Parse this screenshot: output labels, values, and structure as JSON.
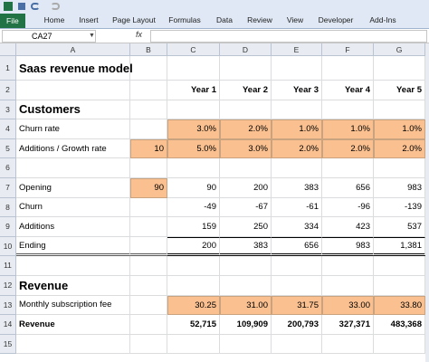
{
  "ribbon": {
    "tabs": [
      "File",
      "Home",
      "Insert",
      "Page Layout",
      "Formulas",
      "Data",
      "Review",
      "View",
      "Developer",
      "Add-Ins"
    ]
  },
  "formula_bar": {
    "name_box": "CA27",
    "fx": "fx"
  },
  "columns": [
    "A",
    "B",
    "C",
    "D",
    "E",
    "F",
    "G"
  ],
  "row_headers": [
    "1",
    "2",
    "3",
    "4",
    "5",
    "6",
    "7",
    "8",
    "9",
    "10",
    "11",
    "12",
    "13",
    "14",
    "15"
  ],
  "rows": [
    [
      "Saas revenue model",
      null,
      null,
      null,
      null,
      null,
      null
    ],
    [
      null,
      null,
      "Year 1",
      "Year 2",
      "Year 3",
      "Year 4",
      "Year 5"
    ],
    [
      "Customers",
      null,
      null,
      null,
      null,
      null,
      null
    ],
    [
      "Churn rate",
      null,
      "3.0%",
      "2.0%",
      "1.0%",
      "1.0%",
      "1.0%"
    ],
    [
      "Additions / Growth rate",
      "10",
      "5.0%",
      "3.0%",
      "2.0%",
      "2.0%",
      "2.0%"
    ],
    [
      null,
      null,
      null,
      null,
      null,
      null,
      null
    ],
    [
      "Opening",
      "90",
      "90",
      "200",
      "383",
      "656",
      "983"
    ],
    [
      "Churn",
      null,
      "-49",
      "-67",
      "-61",
      "-96",
      "-139"
    ],
    [
      "Additions",
      null,
      "159",
      "250",
      "334",
      "423",
      "537"
    ],
    [
      "Ending",
      null,
      "200",
      "383",
      "656",
      "983",
      "1,381"
    ],
    [
      null,
      null,
      null,
      null,
      null,
      null,
      null
    ],
    [
      "Revenue",
      null,
      null,
      null,
      null,
      null,
      null
    ],
    [
      "Monthly subscription fee",
      null,
      "30.25",
      "31.00",
      "31.75",
      "33.00",
      "33.80"
    ],
    [
      "Revenue",
      null,
      "52,715",
      "109,909",
      "200,793",
      "327,371",
      "483,368"
    ],
    [
      null,
      null,
      null,
      null,
      null,
      null,
      null
    ]
  ]
}
